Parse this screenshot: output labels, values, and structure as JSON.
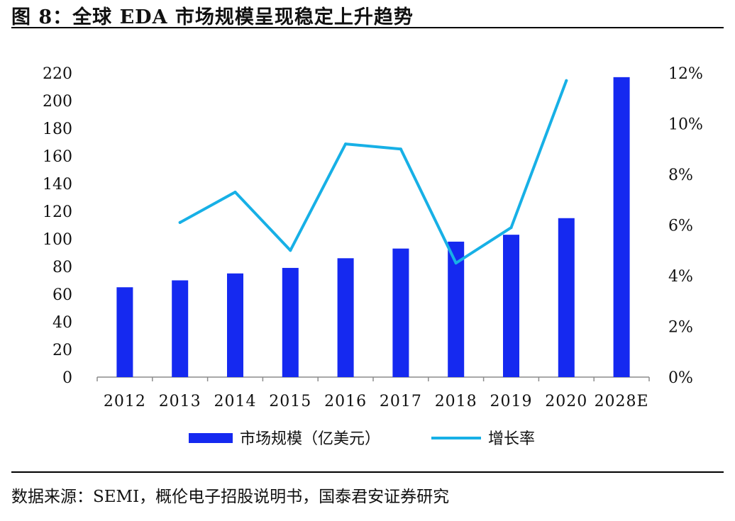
{
  "figure": {
    "title": "图 8：全球 EDA 市场规模呈现稳定上升趋势",
    "source": "数据来源：SEMI，概伦电子招股说明书，国泰君安证券研究"
  },
  "chart_data": {
    "type": "bar+line",
    "categories": [
      "2012",
      "2013",
      "2014",
      "2015",
      "2016",
      "2017",
      "2018",
      "2019",
      "2020",
      "2028E"
    ],
    "series": [
      {
        "name": "市场规模（亿美元）",
        "type": "bar",
        "axis": "left",
        "color": "#1529f0",
        "values": [
          65,
          70,
          75,
          79,
          86,
          93,
          98,
          103,
          115,
          217
        ]
      },
      {
        "name": "增长率",
        "type": "line",
        "axis": "right",
        "color": "#17b0e6",
        "values": [
          null,
          6.1,
          7.3,
          5.0,
          9.2,
          9.0,
          4.5,
          5.9,
          11.7,
          null
        ]
      }
    ],
    "y_left": {
      "min": 0,
      "max": 220,
      "ticks": [
        0,
        20,
        40,
        60,
        80,
        100,
        120,
        140,
        160,
        180,
        200,
        220
      ]
    },
    "y_right": {
      "min": 0,
      "max": 12,
      "ticks": [
        "0%",
        "2%",
        "4%",
        "6%",
        "8%",
        "10%",
        "12%"
      ]
    },
    "legend_position": "bottom-center",
    "grid": false
  }
}
